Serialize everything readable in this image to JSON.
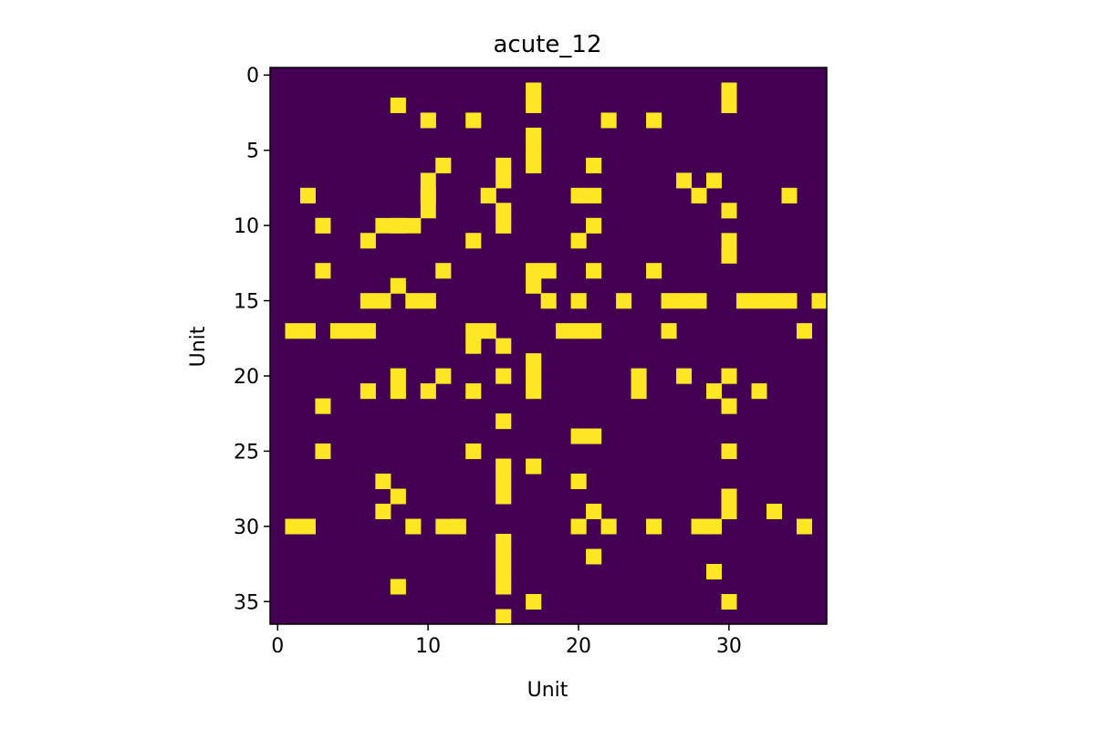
{
  "chart_data": {
    "type": "heatmap",
    "title": "acute_12",
    "xlabel": "Unit",
    "ylabel": "Unit",
    "size": 37,
    "x_ticks": [
      0,
      10,
      20,
      30
    ],
    "y_ticks": [
      0,
      5,
      10,
      15,
      20,
      25,
      30,
      35
    ],
    "xlim": [
      -0.5,
      36.5
    ],
    "ylim": [
      36.5,
      -0.5
    ],
    "colormap": "viridis",
    "colors": {
      "zero": "#440154",
      "one": "#fde725"
    },
    "edges": [
      [
        1,
        17
      ],
      [
        1,
        30
      ],
      [
        2,
        8
      ],
      [
        2,
        17
      ],
      [
        2,
        30
      ],
      [
        3,
        10
      ],
      [
        3,
        13
      ],
      [
        3,
        22
      ],
      [
        3,
        25
      ],
      [
        4,
        17
      ],
      [
        5,
        17
      ],
      [
        6,
        11
      ],
      [
        6,
        15
      ],
      [
        6,
        17
      ],
      [
        6,
        21
      ],
      [
        7,
        10
      ],
      [
        7,
        15
      ],
      [
        7,
        27
      ],
      [
        7,
        29
      ],
      [
        8,
        2
      ],
      [
        8,
        10
      ],
      [
        8,
        14
      ],
      [
        8,
        20
      ],
      [
        8,
        21
      ],
      [
        8,
        28
      ],
      [
        8,
        34
      ],
      [
        9,
        15
      ],
      [
        9,
        30
      ],
      [
        10,
        3
      ],
      [
        10,
        8
      ],
      [
        10,
        9
      ],
      [
        10,
        15
      ],
      [
        10,
        21
      ],
      [
        11,
        6
      ],
      [
        11,
        13
      ],
      [
        11,
        20
      ],
      [
        12,
        30
      ],
      [
        13,
        3
      ],
      [
        13,
        11
      ],
      [
        13,
        17
      ],
      [
        13,
        18
      ],
      [
        13,
        21
      ],
      [
        13,
        25
      ],
      [
        14,
        8
      ],
      [
        14,
        17
      ],
      [
        15,
        6
      ],
      [
        15,
        7
      ],
      [
        15,
        9
      ],
      [
        15,
        10
      ],
      [
        15,
        18
      ],
      [
        15,
        20
      ],
      [
        15,
        23
      ],
      [
        15,
        26
      ],
      [
        15,
        27
      ],
      [
        15,
        28
      ],
      [
        15,
        31
      ],
      [
        15,
        32
      ],
      [
        15,
        33
      ],
      [
        15,
        34
      ],
      [
        15,
        36
      ],
      [
        17,
        1
      ],
      [
        17,
        2
      ],
      [
        17,
        4
      ],
      [
        17,
        5
      ],
      [
        17,
        6
      ],
      [
        17,
        13
      ],
      [
        17,
        14
      ],
      [
        17,
        19
      ],
      [
        17,
        20
      ],
      [
        17,
        21
      ],
      [
        17,
        26
      ],
      [
        17,
        35
      ],
      [
        18,
        13
      ],
      [
        18,
        15
      ],
      [
        19,
        17
      ],
      [
        20,
        8
      ],
      [
        20,
        11
      ],
      [
        20,
        15
      ],
      [
        20,
        17
      ],
      [
        20,
        24
      ],
      [
        20,
        27
      ],
      [
        20,
        30
      ],
      [
        21,
        6
      ],
      [
        21,
        8
      ],
      [
        21,
        10
      ],
      [
        21,
        13
      ],
      [
        21,
        17
      ],
      [
        21,
        24
      ],
      [
        21,
        29
      ],
      [
        21,
        32
      ],
      [
        22,
        3
      ],
      [
        22,
        30
      ],
      [
        23,
        15
      ],
      [
        24,
        20
      ],
      [
        24,
        21
      ],
      [
        25,
        3
      ],
      [
        25,
        13
      ],
      [
        25,
        30
      ],
      [
        26,
        15
      ],
      [
        26,
        17
      ],
      [
        27,
        7
      ],
      [
        27,
        15
      ],
      [
        27,
        20
      ],
      [
        28,
        8
      ],
      [
        28,
        15
      ],
      [
        28,
        30
      ],
      [
        29,
        7
      ],
      [
        29,
        21
      ],
      [
        29,
        30
      ],
      [
        29,
        33
      ],
      [
        30,
        1
      ],
      [
        30,
        2
      ],
      [
        30,
        9
      ],
      [
        30,
        11
      ],
      [
        30,
        12
      ],
      [
        30,
        20
      ],
      [
        30,
        22
      ],
      [
        30,
        25
      ],
      [
        30,
        28
      ],
      [
        30,
        29
      ],
      [
        30,
        35
      ],
      [
        31,
        15
      ],
      [
        32,
        15
      ],
      [
        32,
        21
      ],
      [
        33,
        15
      ],
      [
        33,
        29
      ],
      [
        34,
        8
      ],
      [
        34,
        15
      ],
      [
        35,
        17
      ],
      [
        35,
        30
      ],
      [
        36,
        15
      ]
    ]
  }
}
